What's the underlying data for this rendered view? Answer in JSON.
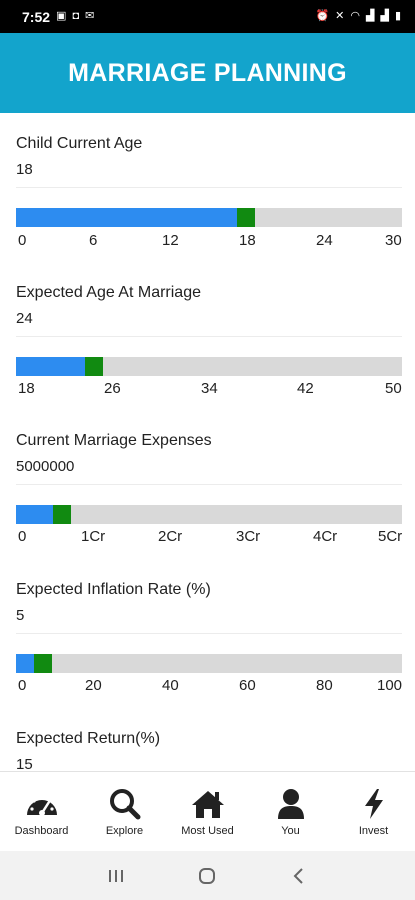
{
  "status_bar": {
    "time": "7:52"
  },
  "header": {
    "title": "MARRIAGE PLANNING"
  },
  "fields": [
    {
      "label": "Child Current Age",
      "value": "18",
      "slider": {
        "min": 0,
        "max": 30,
        "value": 18,
        "ticks": [
          "0",
          "6",
          "12",
          "18",
          "24",
          "30"
        ]
      }
    },
    {
      "label": "Expected Age At Marriage",
      "value": "24",
      "slider": {
        "min": 18,
        "max": 50,
        "value": 24,
        "ticks": [
          "18",
          "26",
          "34",
          "42",
          "50"
        ]
      }
    },
    {
      "label": "Current Marriage Expenses",
      "value": "5000000",
      "slider": {
        "min": 0,
        "max": 50000000,
        "value": 5000000,
        "ticks": [
          "0",
          "1Cr",
          "2Cr",
          "3Cr",
          "4Cr",
          "5Cr"
        ]
      }
    },
    {
      "label": "Expected Inflation Rate (%)",
      "value": "5",
      "slider": {
        "min": 0,
        "max": 100,
        "value": 5,
        "ticks": [
          "0",
          "20",
          "40",
          "60",
          "80",
          "100"
        ]
      }
    },
    {
      "label": "Expected Return(%)",
      "value": "15"
    }
  ],
  "bottom_nav": [
    {
      "label": "Dashboard",
      "icon": "speedometer-icon"
    },
    {
      "label": "Explore",
      "icon": "search-icon"
    },
    {
      "label": "Most Used",
      "icon": "home-icon"
    },
    {
      "label": "You",
      "icon": "user-icon"
    },
    {
      "label": "Invest",
      "icon": "bolt-icon"
    }
  ],
  "colors": {
    "header": "#13a4cc",
    "slider_fill": "#2d8cf0",
    "slider_thumb": "#118a11",
    "slider_track": "#d9d9d9"
  }
}
